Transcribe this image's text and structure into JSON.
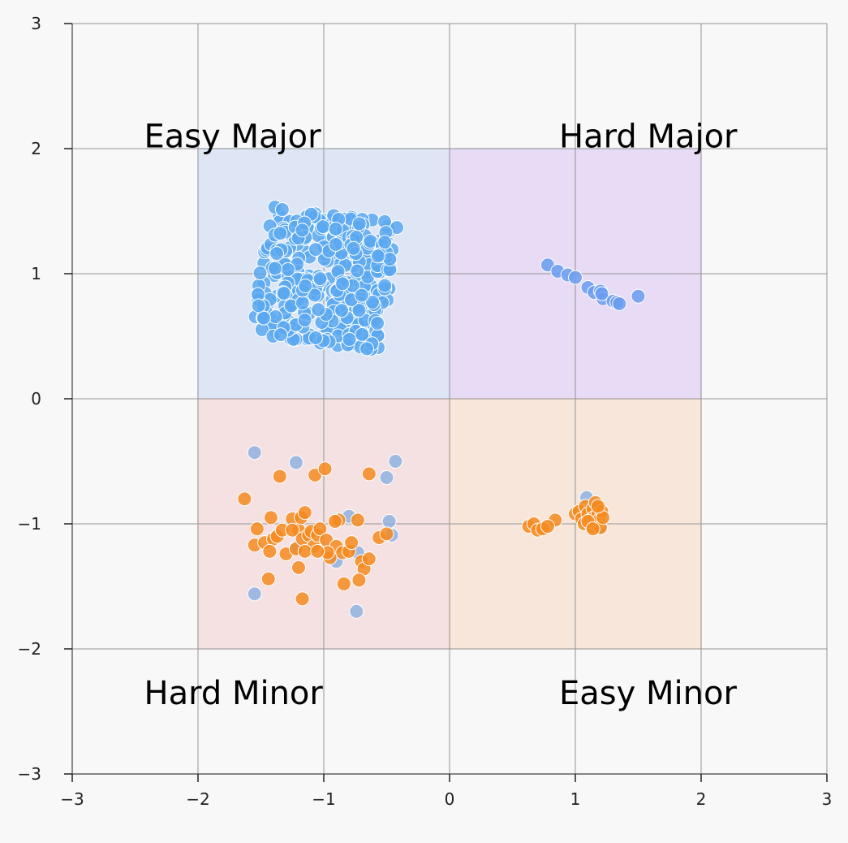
{
  "chart_data": {
    "type": "scatter",
    "title": "",
    "xlabel": "",
    "ylabel": "",
    "xlim": [
      -3,
      3
    ],
    "ylim": [
      -3,
      3
    ],
    "xticks": [
      -3,
      -2,
      -1,
      0,
      1,
      2,
      3
    ],
    "yticks": [
      -3,
      -2,
      -1,
      0,
      1,
      2,
      3
    ],
    "xtick_labels": [
      "−3",
      "−2",
      "−1",
      "0",
      "1",
      "2",
      "3"
    ],
    "ytick_labels": [
      "−3",
      "−2",
      "−1",
      "0",
      "1",
      "2",
      "3"
    ],
    "grid": true,
    "regions": [
      {
        "label": "Easy Major",
        "x": [
          -2,
          0
        ],
        "y": [
          0,
          2
        ],
        "color": "#aec6f0",
        "label_pos": [
          -2.3,
          2.1
        ]
      },
      {
        "label": "Hard Major",
        "x": [
          0,
          2
        ],
        "y": [
          0,
          2
        ],
        "color": "#c9a6f2",
        "label_pos": [
          1.0,
          2.1
        ]
      },
      {
        "label": "Hard Minor",
        "x": [
          -2,
          0
        ],
        "y": [
          -2,
          0
        ],
        "color": "#f2b8b8",
        "label_pos": [
          -2.3,
          -2.35
        ]
      },
      {
        "label": "Easy Minor",
        "x": [
          0,
          2
        ],
        "y": [
          -2,
          0
        ],
        "color": "#f5c6a0",
        "label_pos": [
          1.0,
          -2.35
        ]
      }
    ],
    "series": [
      {
        "color": "#5aa8f0",
        "cluster": {
          "center": [
            -0.99,
            0.96
          ],
          "half_size": 0.52,
          "rotation_deg": -8,
          "count": 360
        },
        "points": []
      },
      {
        "color": "#6a9cf0",
        "points": [
          [
            0.78,
            1.07
          ],
          [
            0.86,
            1.02
          ],
          [
            0.94,
            0.99
          ],
          [
            1.0,
            0.97
          ],
          [
            1.1,
            0.89
          ],
          [
            1.15,
            0.85
          ],
          [
            1.2,
            0.86
          ],
          [
            1.22,
            0.8
          ],
          [
            1.3,
            0.78
          ],
          [
            1.33,
            0.77
          ],
          [
            1.35,
            0.76
          ],
          [
            1.5,
            0.82
          ],
          [
            1.21,
            0.84
          ]
        ]
      },
      {
        "color": "#8fb1e0",
        "points": [
          [
            -1.55,
            -0.43
          ],
          [
            -1.22,
            -0.51
          ],
          [
            -0.43,
            -0.5
          ],
          [
            -0.5,
            -0.63
          ],
          [
            -1.55,
            -1.56
          ],
          [
            -0.74,
            -1.7
          ],
          [
            -0.8,
            -0.94
          ],
          [
            -0.48,
            -0.98
          ],
          [
            -0.46,
            -1.09
          ],
          [
            -0.9,
            -1.3
          ],
          [
            -0.73,
            -1.23
          ],
          [
            -1.22,
            -1.19
          ],
          [
            1.09,
            -0.79
          ],
          [
            1.19,
            -1.03
          ],
          [
            1.05,
            -0.95
          ]
        ]
      },
      {
        "color": "#f58a1f",
        "points": [
          [
            -1.63,
            -0.8
          ],
          [
            -1.35,
            -0.62
          ],
          [
            -1.07,
            -0.61
          ],
          [
            -0.99,
            -0.56
          ],
          [
            -0.64,
            -0.6
          ],
          [
            -1.53,
            -1.04
          ],
          [
            -1.55,
            -1.17
          ],
          [
            -1.47,
            -1.15
          ],
          [
            -1.42,
            -0.95
          ],
          [
            -1.4,
            -1.12
          ],
          [
            -1.37,
            -1.1
          ],
          [
            -1.43,
            -1.22
          ],
          [
            -1.33,
            -1.05
          ],
          [
            -1.3,
            -1.24
          ],
          [
            -1.25,
            -0.96
          ],
          [
            -1.22,
            -1.2
          ],
          [
            -1.2,
            -1.35
          ],
          [
            -1.2,
            -1.05
          ],
          [
            -1.18,
            -0.95
          ],
          [
            -1.17,
            -1.12
          ],
          [
            -1.15,
            -0.91
          ],
          [
            -1.12,
            -1.09
          ],
          [
            -1.1,
            -1.06
          ],
          [
            -1.08,
            -1.18
          ],
          [
            -1.05,
            -1.09
          ],
          [
            -1.03,
            -1.04
          ],
          [
            -0.98,
            -1.13
          ],
          [
            -0.95,
            -1.27
          ],
          [
            -0.9,
            -1.18
          ],
          [
            -0.88,
            -0.97
          ],
          [
            -0.85,
            -1.23
          ],
          [
            -0.8,
            -1.22
          ],
          [
            -0.78,
            -1.15
          ],
          [
            -0.73,
            -0.97
          ],
          [
            -0.7,
            -1.3
          ],
          [
            -0.68,
            -1.36
          ],
          [
            -0.64,
            -1.28
          ],
          [
            -0.56,
            -1.11
          ],
          [
            -0.5,
            -1.08
          ],
          [
            -0.84,
            -1.48
          ],
          [
            -0.72,
            -1.45
          ],
          [
            -1.44,
            -1.44
          ],
          [
            -1.17,
            -1.6
          ],
          [
            -0.97,
            -1.23
          ],
          [
            -0.91,
            -0.98
          ],
          [
            -1.25,
            -1.05
          ],
          [
            -1.15,
            -1.22
          ],
          [
            -1.05,
            -1.22
          ],
          [
            0.63,
            -1.02
          ],
          [
            0.67,
            -1.0
          ],
          [
            0.7,
            -1.05
          ],
          [
            0.74,
            -1.04
          ],
          [
            0.84,
            -0.97
          ],
          [
            0.78,
            -1.02
          ],
          [
            1.0,
            -0.92
          ],
          [
            1.03,
            -0.9
          ],
          [
            1.05,
            -0.96
          ],
          [
            1.07,
            -1.0
          ],
          [
            1.08,
            -0.86
          ],
          [
            1.1,
            -0.92
          ],
          [
            1.12,
            -0.97
          ],
          [
            1.13,
            -1.02
          ],
          [
            1.14,
            -0.88
          ],
          [
            1.15,
            -0.95
          ],
          [
            1.16,
            -0.83
          ],
          [
            1.17,
            -1.0
          ],
          [
            1.18,
            -0.92
          ],
          [
            1.19,
            -0.97
          ],
          [
            1.2,
            -1.03
          ],
          [
            1.21,
            -0.9
          ],
          [
            1.22,
            -0.95
          ],
          [
            1.1,
            -0.98
          ],
          [
            1.14,
            -1.04
          ],
          [
            1.18,
            -0.86
          ]
        ]
      }
    ]
  }
}
